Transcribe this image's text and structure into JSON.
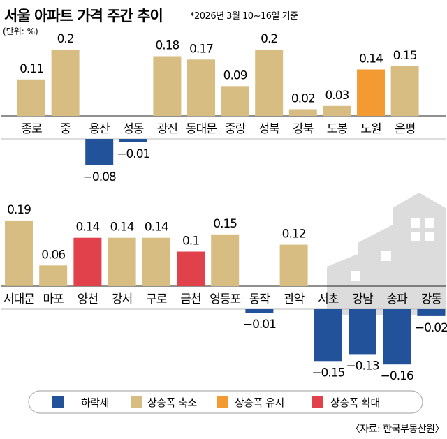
{
  "colors": {
    "down": "#22529a",
    "shrink": "#d7bd82",
    "maintain": "#f39a32",
    "expand": "#e0414b",
    "house": "#dcdcdc"
  },
  "chart_data": {
    "type": "bar",
    "title": "서울 아파트 가격 주간 추이",
    "subtitle": "*2026년 3월 10~16일 기준",
    "unit": "(단위: %)",
    "source": "〈자료: 한국부동산원〉",
    "legend": [
      {
        "key": "down",
        "label": "하락세"
      },
      {
        "key": "shrink",
        "label": "상승폭 축소"
      },
      {
        "key": "maintain",
        "label": "상승폭 유지"
      },
      {
        "key": "expand",
        "label": "상승폭 확대"
      }
    ],
    "panels": [
      {
        "categories": [
          "종로",
          "중",
          "용산",
          "성동",
          "광진",
          "동대문",
          "중랑",
          "성북",
          "강북",
          "도봉",
          "노원",
          "은평"
        ],
        "values": [
          0.11,
          0.2,
          -0.08,
          -0.01,
          0.18,
          0.17,
          0.09,
          0.2,
          0.02,
          0.03,
          0.14,
          0.15
        ],
        "labels": [
          "0.11",
          "0.2",
          "−0.08",
          "−0.01",
          "0.18",
          "0.17",
          "0.09",
          "0.2",
          "0.02",
          "0.03",
          "0.14",
          "0.15"
        ],
        "status": [
          "shrink",
          "shrink",
          "down",
          "down",
          "shrink",
          "shrink",
          "shrink",
          "shrink",
          "shrink",
          "shrink",
          "maintain",
          "shrink"
        ]
      },
      {
        "categories": [
          "서대문",
          "마포",
          "양천",
          "강서",
          "구로",
          "금천",
          "영등포",
          "동작",
          "관악",
          "서초",
          "강남",
          "송파",
          "강동"
        ],
        "values": [
          0.19,
          0.06,
          0.14,
          0.14,
          0.14,
          0.1,
          0.15,
          -0.01,
          0.12,
          -0.15,
          -0.13,
          -0.16,
          -0.02
        ],
        "labels": [
          "0.19",
          "0.06",
          "0.14",
          "0.14",
          "0.14",
          "0.1",
          "0.15",
          "−0.01",
          "0.12",
          "−0.15",
          "−0.13",
          "−0.16",
          "−0.02"
        ],
        "status": [
          "shrink",
          "shrink",
          "expand",
          "shrink",
          "shrink",
          "expand",
          "shrink",
          "down",
          "shrink",
          "down",
          "down",
          "down",
          "down"
        ]
      }
    ]
  }
}
